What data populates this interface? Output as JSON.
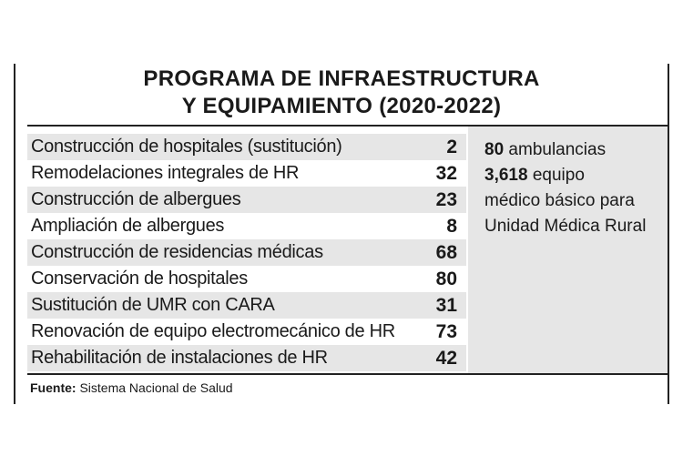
{
  "title": {
    "line1": "PROGRAMA DE INFRAESTRUCTURA",
    "line2": "Y EQUIPAMIENTO (2020-2022)"
  },
  "rows": [
    {
      "label": "Construcción de hospitales (sustitución)",
      "value": "2"
    },
    {
      "label": "Remodelaciones integrales de HR",
      "value": "32"
    },
    {
      "label": "Construcción de albergues",
      "value": "23"
    },
    {
      "label": "Ampliación de albergues",
      "value": "8"
    },
    {
      "label": "Construcción de residencias médicas",
      "value": "68"
    },
    {
      "label": "Conservación de hospitales",
      "value": "80"
    },
    {
      "label": "Sustitución de UMR con CARA",
      "value": "31"
    },
    {
      "label": "Renovación de equipo electromecánico de HR",
      "value": "73"
    },
    {
      "label": "Rehabilitación de instalaciones de HR",
      "value": "42"
    }
  ],
  "side": {
    "item1_number": "80",
    "item1_text": " ambulancias",
    "item2_number": "3,618",
    "item2_text": " equipo",
    "item2_line2": "médico básico para",
    "item2_line3": "Unidad Médica Rural"
  },
  "source": {
    "label": "Fuente:",
    "text": " Sistema Nacional de Salud"
  }
}
